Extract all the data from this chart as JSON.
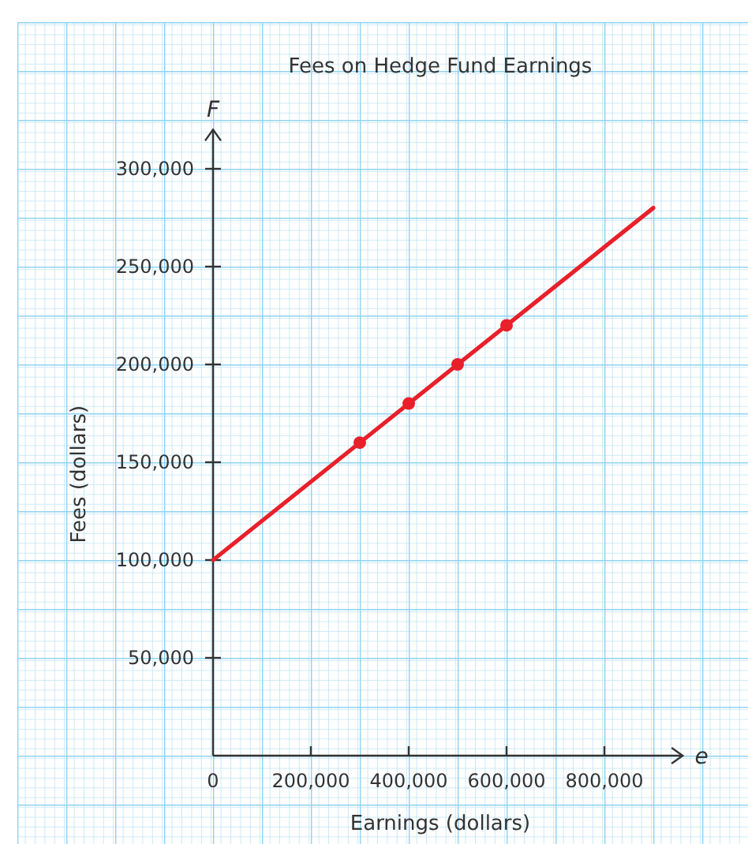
{
  "chart_data": {
    "type": "line",
    "title": "Fees on Hedge Fund Earnings",
    "xlabel": "Earnings (dollars)",
    "ylabel": "Fees (dollars)",
    "annotations": [
      "F",
      "e"
    ],
    "xlim": [
      0,
      960000
    ],
    "ylim": [
      0,
      320000
    ],
    "xticks": [
      {
        "value": 0,
        "label": "0"
      },
      {
        "value": 200000,
        "label": "200,000"
      },
      {
        "value": 400000,
        "label": "400,000"
      },
      {
        "value": 600000,
        "label": "600,000"
      },
      {
        "value": 800000,
        "label": "800,000"
      }
    ],
    "yticks": [
      {
        "value": 50000,
        "label": "50,000"
      },
      {
        "value": 100000,
        "label": "100,000"
      },
      {
        "value": 150000,
        "label": "150,000"
      },
      {
        "value": 200000,
        "label": "200,000"
      },
      {
        "value": 250000,
        "label": "250,000"
      },
      {
        "value": 300000,
        "label": "300,000"
      }
    ],
    "series": [
      {
        "type": "line",
        "color": "#e8202a",
        "x": [
          0,
          900000
        ],
        "values": [
          100000,
          280000
        ],
        "marker": "none"
      },
      {
        "type": "scatter",
        "color": "#e8202a",
        "x": [
          300000,
          400000,
          500000,
          600000
        ],
        "values": [
          160000,
          180000,
          200000,
          220000
        ],
        "marker": "circle"
      }
    ]
  }
}
